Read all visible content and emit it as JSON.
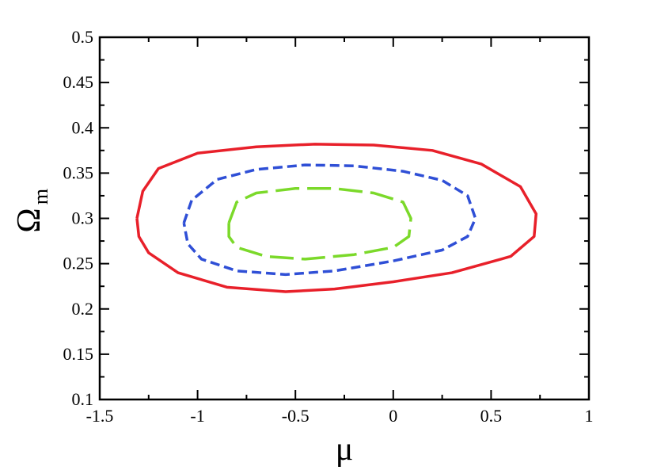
{
  "chart_data": {
    "type": "line",
    "xlabel": "μ",
    "ylabel": "Ω",
    "ylabel_sub": "m",
    "xlim": [
      -1.5,
      1
    ],
    "xticks": [
      -1.5,
      -1,
      -0.5,
      0,
      0.5,
      1
    ],
    "xminorticks": [
      -1.25,
      -0.75,
      -0.25,
      0.25,
      0.75
    ],
    "ylim": [
      0.1,
      0.5
    ],
    "yticks": [
      0.1,
      0.15,
      0.2,
      0.25,
      0.3,
      0.35,
      0.4,
      0.45,
      0.5
    ],
    "yminorticks": [
      0.125,
      0.175,
      0.225,
      0.275,
      0.325,
      0.375,
      0.425,
      0.475
    ],
    "series": [
      {
        "color": "#e8202a",
        "style": "solid",
        "x": [
          -1.31,
          -1.28,
          -1.2,
          -1.0,
          -0.7,
          -0.4,
          -0.1,
          0.2,
          0.45,
          0.65,
          0.73,
          0.72,
          0.6,
          0.3,
          0.0,
          -0.3,
          -0.55,
          -0.85,
          -1.1,
          -1.25,
          -1.3,
          -1.31
        ],
        "values": [
          0.3,
          0.33,
          0.355,
          0.372,
          0.379,
          0.382,
          0.381,
          0.375,
          0.36,
          0.335,
          0.305,
          0.28,
          0.258,
          0.24,
          0.23,
          0.222,
          0.219,
          0.224,
          0.24,
          0.262,
          0.28,
          0.3
        ]
      },
      {
        "color": "#2f4fd6",
        "style": "dashed",
        "x": [
          -1.07,
          -1.03,
          -0.9,
          -0.7,
          -0.45,
          -0.2,
          0.05,
          0.25,
          0.38,
          0.42,
          0.38,
          0.25,
          0.0,
          -0.3,
          -0.55,
          -0.8,
          -0.98,
          -1.05,
          -1.07
        ],
        "values": [
          0.295,
          0.32,
          0.343,
          0.354,
          0.359,
          0.358,
          0.352,
          0.342,
          0.325,
          0.3,
          0.28,
          0.265,
          0.253,
          0.242,
          0.238,
          0.242,
          0.255,
          0.272,
          0.295
        ]
      },
      {
        "color": "#7bd92a",
        "style": "long-dashed",
        "x": [
          -0.84,
          -0.8,
          -0.7,
          -0.5,
          -0.3,
          -0.1,
          0.05,
          0.09,
          0.08,
          0.0,
          -0.2,
          -0.45,
          -0.65,
          -0.8,
          -0.84,
          -0.84
        ],
        "values": [
          0.295,
          0.318,
          0.328,
          0.333,
          0.333,
          0.328,
          0.318,
          0.3,
          0.28,
          0.268,
          0.26,
          0.255,
          0.258,
          0.268,
          0.28,
          0.295
        ]
      }
    ]
  }
}
